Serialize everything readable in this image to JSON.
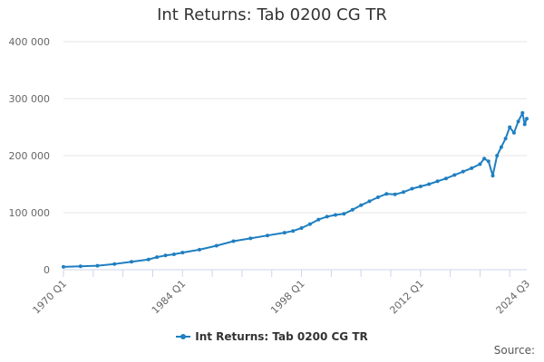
{
  "chart_data": {
    "type": "line",
    "title": "Int Returns: Tab 0200 CG TR",
    "xlabel": "",
    "ylabel": "",
    "x_tick_labels": [
      "1970 Q1",
      "1984 Q1",
      "1998 Q1",
      "2012 Q1",
      "2024 Q3"
    ],
    "x_ticks_years": [
      1970,
      1984,
      1998,
      2012,
      2024.5
    ],
    "y_tick_labels": [
      "0",
      "100 000",
      "200 000",
      "300 000",
      "400 000"
    ],
    "y_ticks": [
      0,
      100000,
      200000,
      300000,
      400000
    ],
    "ylim": [
      0,
      400000
    ],
    "xlim": [
      1970,
      2024.5
    ],
    "grid": "horizontal",
    "legend_position": "bottom",
    "series": [
      {
        "name": "Int Returns: Tab 0200 CG TR",
        "color": "#1f7fc1",
        "x": [
          1970,
          1972,
          1974,
          1976,
          1978,
          1980,
          1981,
          1982,
          1983,
          1984,
          1986,
          1988,
          1990,
          1992,
          1994,
          1996,
          1997,
          1998,
          1999,
          2000,
          2001,
          2002,
          2003,
          2004,
          2005,
          2006,
          2007,
          2008,
          2009,
          2010,
          2011,
          2012,
          2013,
          2014,
          2015,
          2016,
          2017,
          2018,
          2019,
          2019.5,
          2020,
          2020.5,
          2021,
          2021.5,
          2022,
          2022.5,
          2023,
          2023.5,
          2024,
          2024.25,
          2024.5
        ],
        "values": [
          5000,
          6000,
          7000,
          10000,
          14000,
          18000,
          22000,
          25000,
          27000,
          30000,
          35000,
          42000,
          50000,
          55000,
          60000,
          65000,
          68000,
          73000,
          80000,
          88000,
          93000,
          96000,
          98000,
          105000,
          113000,
          120000,
          127000,
          133000,
          132000,
          136000,
          142000,
          146000,
          150000,
          155000,
          160000,
          166000,
          172000,
          178000,
          185000,
          195000,
          190000,
          165000,
          200000,
          215000,
          230000,
          250000,
          240000,
          260000,
          275000,
          255000,
          265000
        ]
      }
    ]
  },
  "legend": {
    "label": "Int Returns: Tab 0200 CG TR"
  },
  "credits": {
    "label": "Source:"
  }
}
